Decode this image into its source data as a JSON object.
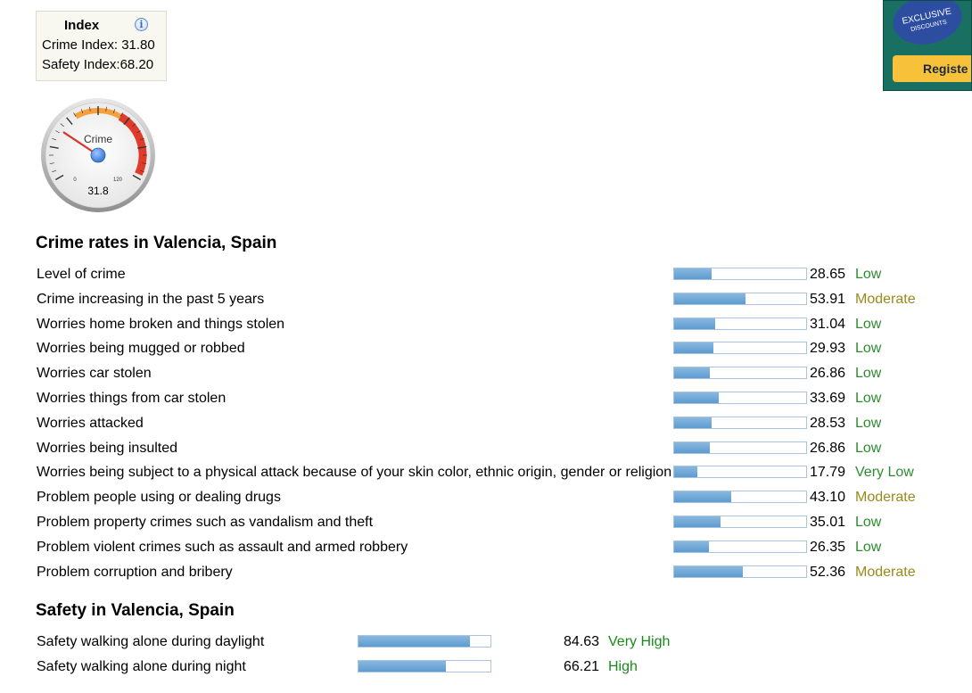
{
  "index_box": {
    "title": "Index",
    "crime_label": "Crime Index:",
    "crime_value": "31.80",
    "safety_label": "Safety Index:",
    "safety_value": "68.20"
  },
  "gauge": {
    "label": "Crime",
    "value": 31.8,
    "value_text": "31.8",
    "min_text": "0",
    "max_text": "120",
    "min": 0,
    "max": 120
  },
  "ad": {
    "badge_line1": "EXCLUSIVE",
    "badge_line2": "DISCOUNTS",
    "button": "Registe"
  },
  "crime_section": {
    "title": "Crime rates in Valencia, Spain",
    "rows": [
      {
        "label": "Level of crime",
        "value": 28.65,
        "value_text": "28.65",
        "level": "Low"
      },
      {
        "label": "Crime increasing in the past 5 years",
        "value": 53.91,
        "value_text": "53.91",
        "level": "Moderate"
      },
      {
        "label": "Worries home broken and things stolen",
        "value": 31.04,
        "value_text": "31.04",
        "level": "Low"
      },
      {
        "label": "Worries being mugged or robbed",
        "value": 29.93,
        "value_text": "29.93",
        "level": "Low"
      },
      {
        "label": "Worries car stolen",
        "value": 26.86,
        "value_text": "26.86",
        "level": "Low"
      },
      {
        "label": "Worries things from car stolen",
        "value": 33.69,
        "value_text": "33.69",
        "level": "Low"
      },
      {
        "label": "Worries attacked",
        "value": 28.53,
        "value_text": "28.53",
        "level": "Low"
      },
      {
        "label": "Worries being insulted",
        "value": 26.86,
        "value_text": "26.86",
        "level": "Low"
      },
      {
        "label": "Worries being subject to a physical attack because of your skin color, ethnic origin, gender or religion",
        "value": 17.79,
        "value_text": "17.79",
        "level": "Very Low"
      },
      {
        "label": "Problem people using or dealing drugs",
        "value": 43.1,
        "value_text": "43.10",
        "level": "Moderate"
      },
      {
        "label": "Problem property crimes such as vandalism and theft",
        "value": 35.01,
        "value_text": "35.01",
        "level": "Low"
      },
      {
        "label": "Problem violent crimes such as assault and armed robbery",
        "value": 26.35,
        "value_text": "26.35",
        "level": "Low"
      },
      {
        "label": "Problem corruption and bribery",
        "value": 52.36,
        "value_text": "52.36",
        "level": "Moderate"
      }
    ]
  },
  "safety_section": {
    "title": "Safety in Valencia, Spain",
    "rows": [
      {
        "label": "Safety walking alone during daylight",
        "value": 84.63,
        "value_text": "84.63",
        "level": "Very High"
      },
      {
        "label": "Safety walking alone during night",
        "value": 66.21,
        "value_text": "66.21",
        "level": "High"
      }
    ]
  },
  "colors": {
    "low": "#2e8b2e",
    "very_low": "#2e8b2e",
    "moderate": "#9a8a1a",
    "high": "#1a8a1a",
    "very_high": "#1a8a1a"
  }
}
